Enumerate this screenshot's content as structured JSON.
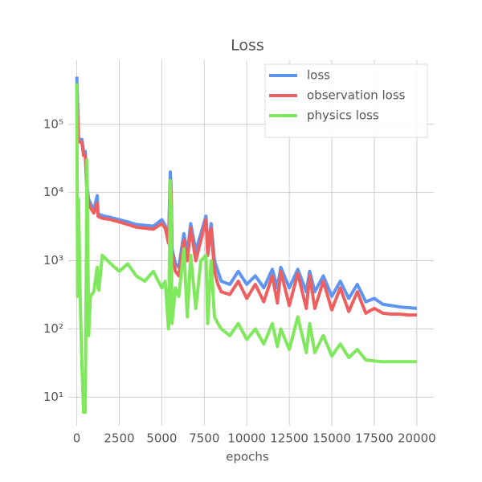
{
  "chart_data": {
    "type": "line",
    "title": "Loss",
    "x_label": "epochs",
    "log_y": true,
    "grid": true,
    "legend": "upper right",
    "x": [
      0,
      50,
      100,
      200,
      300,
      400,
      500,
      600,
      700,
      800,
      1000,
      1200,
      1250,
      1300,
      1500,
      2000,
      2500,
      3000,
      3500,
      4000,
      4500,
      5000,
      5200,
      5400,
      5500,
      5550,
      5600,
      5800,
      6000,
      6300,
      6500,
      6700,
      7000,
      7300,
      7600,
      7700,
      7900,
      8100,
      8300,
      8500,
      9000,
      9500,
      10000,
      10500,
      11000,
      11500,
      11800,
      12000,
      12500,
      13000,
      13500,
      13700,
      14000,
      14500,
      15000,
      15500,
      16000,
      16500,
      17000,
      17500,
      18000,
      18500,
      19000,
      19500,
      20000
    ],
    "series": [
      {
        "name": "loss",
        "color": "#5f95f0",
        "values": [
          500000,
          200000,
          60000,
          60000,
          60000,
          40000,
          40000,
          12000,
          8000,
          7000,
          5500,
          9000,
          5000,
          4800,
          4600,
          4300,
          4000,
          3700,
          3400,
          3300,
          3200,
          4000,
          3300,
          2000,
          20000,
          12000,
          1500,
          900,
          800,
          2500,
          1300,
          3500,
          1400,
          2500,
          4500,
          1500,
          3500,
          1000,
          700,
          500,
          450,
          700,
          450,
          600,
          400,
          750,
          400,
          800,
          400,
          750,
          350,
          700,
          350,
          600,
          300,
          500,
          280,
          450,
          250,
          280,
          230,
          220,
          210,
          205,
          200
        ]
      },
      {
        "name": "observation loss",
        "color": "#ee5f60",
        "values": [
          400000,
          150000,
          55000,
          55000,
          55000,
          35000,
          35000,
          10000,
          7000,
          6000,
          5000,
          7000,
          4500,
          4400,
          4200,
          4000,
          3700,
          3400,
          3100,
          3000,
          2900,
          3500,
          3000,
          1800,
          15000,
          10000,
          1300,
          700,
          600,
          2000,
          1000,
          3000,
          1000,
          2000,
          4000,
          1200,
          3000,
          700,
          450,
          350,
          320,
          500,
          280,
          450,
          250,
          600,
          240,
          700,
          220,
          650,
          200,
          600,
          200,
          500,
          190,
          400,
          180,
          350,
          170,
          200,
          170,
          165,
          165,
          160,
          160
        ]
      },
      {
        "name": "physics loss",
        "color": "#7fe85c",
        "values": [
          400000,
          300,
          8000,
          300,
          30,
          6,
          6,
          30000,
          80,
          300,
          350,
          800,
          400,
          370,
          1200,
          900,
          700,
          900,
          600,
          500,
          700,
          400,
          500,
          100,
          15000,
          5000,
          120,
          400,
          300,
          1500,
          150,
          1200,
          200,
          1000,
          1200,
          120,
          1000,
          150,
          120,
          100,
          80,
          120,
          70,
          100,
          60,
          120,
          55,
          100,
          50,
          150,
          45,
          120,
          45,
          80,
          40,
          60,
          38,
          50,
          35,
          34,
          33,
          33,
          33,
          33,
          33
        ]
      }
    ],
    "xlim": [
      -500,
      21000
    ],
    "ylim": [
      3.8,
      870000
    ],
    "xticks": [
      0,
      2500,
      5000,
      7500,
      10000,
      12500,
      15000,
      17500,
      20000
    ],
    "yticks": [
      {
        "value": 10,
        "label": "10¹"
      },
      {
        "value": 100,
        "label": "10²"
      },
      {
        "value": 1000,
        "label": "10³"
      },
      {
        "value": 10000,
        "label": "10⁴"
      },
      {
        "value": 100000,
        "label": "10⁵"
      }
    ]
  }
}
